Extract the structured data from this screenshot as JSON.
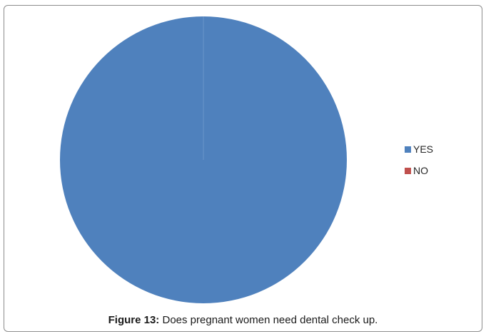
{
  "chart_data": {
    "type": "pie",
    "title": "",
    "categories": [
      "YES",
      "NO"
    ],
    "values": [
      100,
      0
    ],
    "colors": [
      "#4f81bd",
      "#c0504d"
    ],
    "legend_position": "right"
  },
  "caption": {
    "label": "Figure 13:",
    "text": "Does pregnant women need dental check up."
  }
}
